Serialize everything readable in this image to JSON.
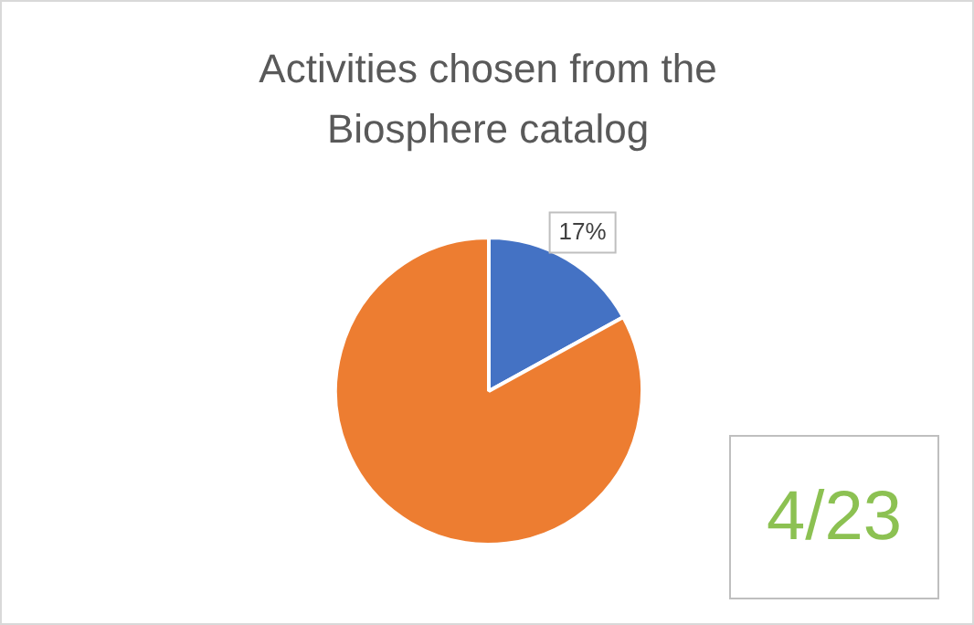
{
  "chart_data": {
    "type": "pie",
    "title": "Activities chosen from the Biosphere catalog",
    "categories": [
      null,
      null
    ],
    "values": [
      17,
      83
    ],
    "colors": [
      "#4472c4",
      "#ed7d31"
    ],
    "value_labels": [
      "17%",
      null
    ],
    "legend": false,
    "annotations": [
      "4/23"
    ]
  }
}
